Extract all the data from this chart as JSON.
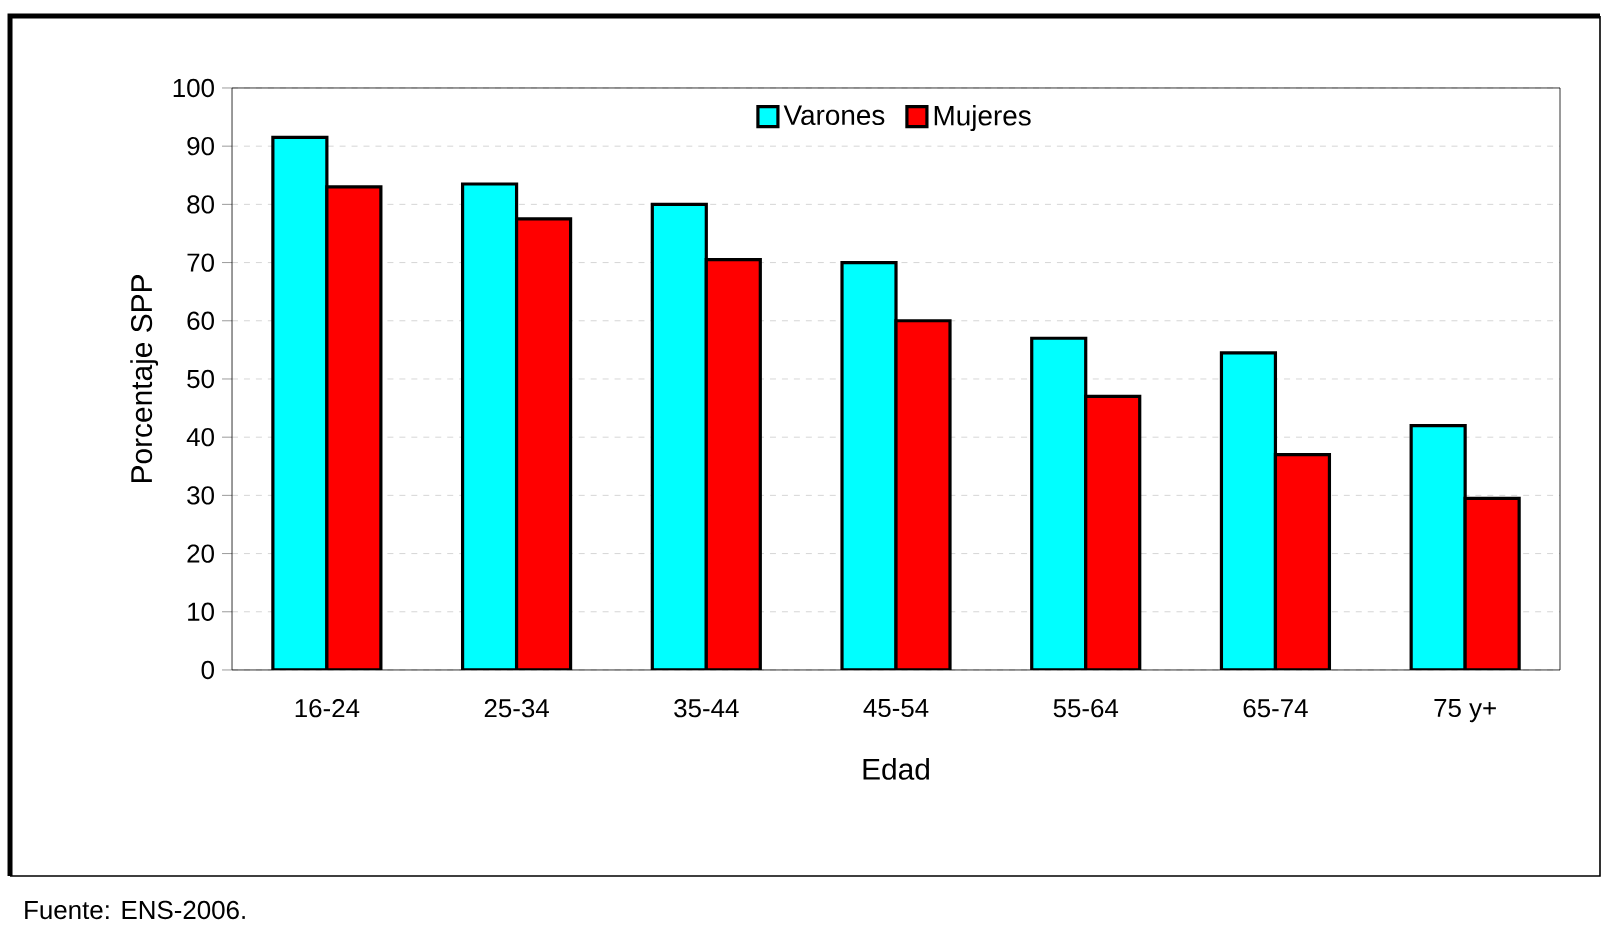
{
  "chart_data": {
    "type": "bar",
    "xlabel": "Edad",
    "ylabel": "Porcentaje SPP",
    "categories": [
      "16-24",
      "25-34",
      "35-44",
      "45-54",
      "55-64",
      "65-74",
      "75 y+"
    ],
    "series": [
      {
        "name": "Varones",
        "color": "#00ffff",
        "values": [
          91.5,
          83.5,
          80,
          70,
          57,
          54.5,
          42
        ]
      },
      {
        "name": "Mujeres",
        "color": "#ff0000",
        "values": [
          83,
          77.5,
          70.5,
          60,
          47,
          37,
          29.5
        ]
      }
    ],
    "ylim": [
      0,
      100
    ],
    "yticks": [
      0,
      10,
      20,
      30,
      40,
      50,
      60,
      70,
      80,
      90,
      100
    ],
    "grid": "y",
    "legend": "top",
    "annotations": [
      "Fuente: ENS-2006."
    ]
  }
}
